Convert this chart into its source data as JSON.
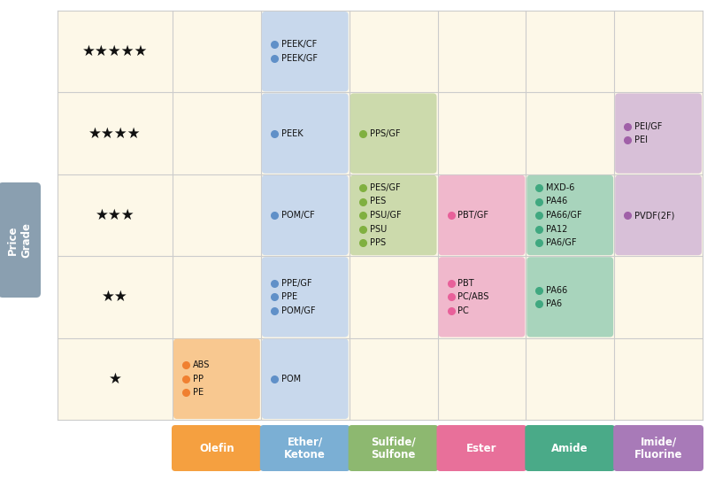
{
  "background_color": "#ffffff",
  "price_grade_bg": "#8a9fb0",
  "row_bg": "#fdf8e8",
  "grid_line_color": "#cccccc",
  "stars": [
    "★★★★★",
    "★★★★",
    "★★★",
    "★★",
    "★"
  ],
  "col_labels": [
    "Olefin",
    "Ether/\nKetone",
    "Sulfide/\nSulfone",
    "Ester",
    "Amide",
    "Imide/\nFluorine"
  ],
  "col_label_colors": [
    "#f5a040",
    "#7bafd4",
    "#8db870",
    "#e8709a",
    "#4aaa88",
    "#a87ab8"
  ],
  "cells": [
    {
      "row": 0,
      "col": 1,
      "items": [
        "PEEK/CF",
        "PEEK/GF"
      ],
      "bg": "#c8d8ec",
      "dot_color": "#6090c8"
    },
    {
      "row": 1,
      "col": 1,
      "items": [
        "PEEK"
      ],
      "bg": "#c8d8ec",
      "dot_color": "#6090c8"
    },
    {
      "row": 1,
      "col": 2,
      "items": [
        "PPS/GF"
      ],
      "bg": "#ccdaac",
      "dot_color": "#80b040"
    },
    {
      "row": 1,
      "col": 5,
      "items": [
        "PEI/GF",
        "PEI"
      ],
      "bg": "#d8c0d8",
      "dot_color": "#a060a8"
    },
    {
      "row": 2,
      "col": 1,
      "items": [
        "POM/CF"
      ],
      "bg": "#c8d8ec",
      "dot_color": "#6090c8"
    },
    {
      "row": 2,
      "col": 2,
      "items": [
        "PES/GF",
        "PES",
        "PSU/GF",
        "PSU",
        "PPS"
      ],
      "bg": "#ccdaac",
      "dot_color": "#80b040"
    },
    {
      "row": 2,
      "col": 3,
      "items": [
        "PBT/GF"
      ],
      "bg": "#f0b8cc",
      "dot_color": "#e8609a"
    },
    {
      "row": 2,
      "col": 4,
      "items": [
        "MXD-6",
        "PA46",
        "PA66/GF",
        "PA12",
        "PA6/GF"
      ],
      "bg": "#a8d4bc",
      "dot_color": "#40a880"
    },
    {
      "row": 2,
      "col": 5,
      "items": [
        "PVDF(2F)"
      ],
      "bg": "#d8c0d8",
      "dot_color": "#a060a8"
    },
    {
      "row": 3,
      "col": 1,
      "items": [
        "PPE/GF",
        "PPE",
        "POM/GF"
      ],
      "bg": "#c8d8ec",
      "dot_color": "#6090c8"
    },
    {
      "row": 3,
      "col": 3,
      "items": [
        "PBT",
        "PC/ABS",
        "PC"
      ],
      "bg": "#f0b8cc",
      "dot_color": "#e8609a"
    },
    {
      "row": 3,
      "col": 4,
      "items": [
        "PA66",
        "PA6"
      ],
      "bg": "#a8d4bc",
      "dot_color": "#40a880"
    },
    {
      "row": 4,
      "col": 0,
      "items": [
        "ABS",
        "PP",
        "PE"
      ],
      "bg": "#f8c890",
      "dot_color": "#f08030"
    },
    {
      "row": 4,
      "col": 1,
      "items": [
        "POM"
      ],
      "bg": "#c8d8ec",
      "dot_color": "#6090c8"
    }
  ]
}
